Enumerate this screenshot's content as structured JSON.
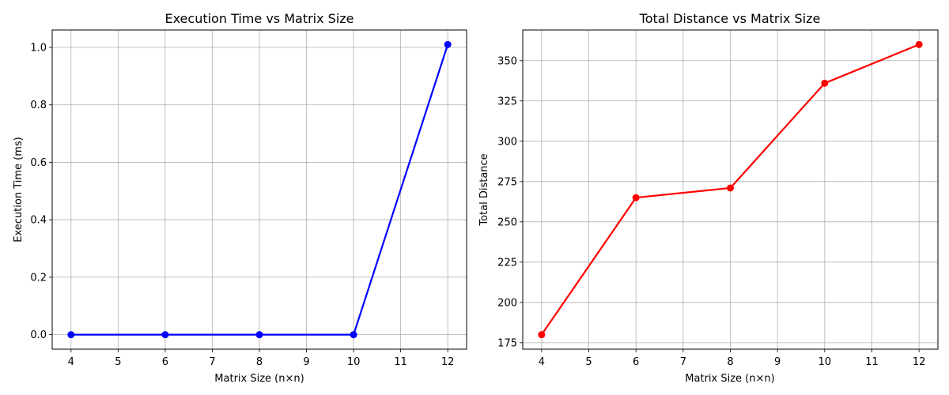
{
  "chart_data": [
    {
      "type": "line",
      "title": "Execution Time vs Matrix Size",
      "xlabel": "Matrix Size (n×n)",
      "ylabel": "Execution Time (ms)",
      "x": [
        4,
        6,
        8,
        10,
        12
      ],
      "series": [
        {
          "values": [
            0.0,
            0.0,
            0.0,
            0.0,
            1.01
          ],
          "color": "#0000ff",
          "marker": "circle"
        }
      ],
      "xlim": [
        3.6,
        12.4
      ],
      "ylim": [
        -0.0505,
        1.0605
      ],
      "xticks": [
        4,
        5,
        6,
        7,
        8,
        9,
        10,
        11,
        12
      ],
      "yticks": [
        0.0,
        0.2,
        0.4,
        0.6,
        0.8,
        1.0
      ],
      "ytick_labels": [
        "0.0",
        "0.2",
        "0.4",
        "0.6",
        "0.8",
        "1.0"
      ],
      "grid": true
    },
    {
      "type": "line",
      "title": "Total Distance vs Matrix Size",
      "xlabel": "Matrix Size (n×n)",
      "ylabel": "Total Distance",
      "x": [
        4,
        6,
        8,
        10,
        12
      ],
      "series": [
        {
          "values": [
            180,
            265,
            271,
            336,
            360
          ],
          "color": "#ff0000",
          "marker": "circle"
        }
      ],
      "xlim": [
        3.6,
        12.4
      ],
      "ylim": [
        171,
        369
      ],
      "xticks": [
        4,
        5,
        6,
        7,
        8,
        9,
        10,
        11,
        12
      ],
      "yticks": [
        175,
        200,
        225,
        250,
        275,
        300,
        325,
        350
      ],
      "ytick_labels": [
        "175",
        "200",
        "225",
        "250",
        "275",
        "300",
        "325",
        "350"
      ],
      "grid": true
    }
  ]
}
